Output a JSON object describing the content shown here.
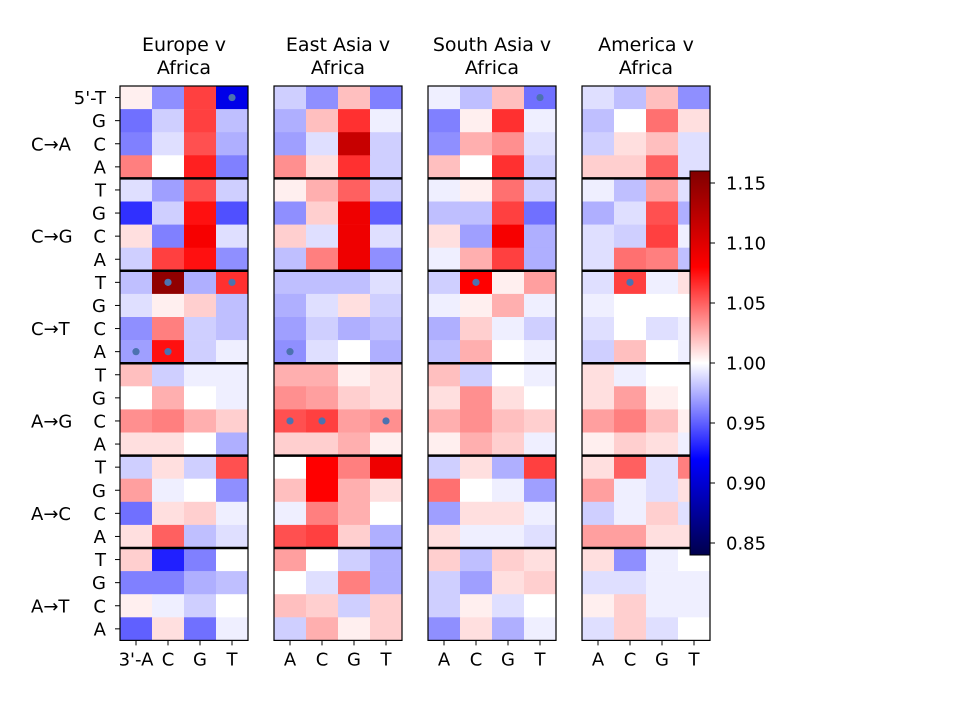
{
  "chart_data": {
    "type": "heatmap",
    "colormap": "seismic",
    "panels": [
      {
        "title_line1": "Europe v",
        "title_line2": "Africa",
        "x_tick_labels": [
          "3'-A",
          "C",
          "G",
          "T"
        ],
        "values": [
          [
            1.005,
            0.965,
            1.06,
            0.91
          ],
          [
            0.955,
            0.985,
            1.06,
            0.98
          ],
          [
            0.96,
            0.99,
            1.055,
            0.975
          ],
          [
            1.04,
            1.0,
            1.07,
            0.96
          ],
          [
            0.99,
            0.97,
            1.055,
            0.985
          ],
          [
            0.935,
            0.985,
            1.075,
            0.945
          ],
          [
            1.01,
            0.96,
            1.085,
            0.99
          ],
          [
            0.985,
            1.06,
            1.075,
            0.965
          ],
          [
            0.98,
            1.15,
            0.975,
            1.065
          ],
          [
            0.99,
            1.005,
            1.015,
            0.98
          ],
          [
            0.965,
            1.04,
            0.985,
            0.98
          ],
          [
            0.97,
            1.075,
            0.985,
            0.995
          ],
          [
            1.02,
            0.985,
            0.995,
            0.995
          ],
          [
            1.0,
            1.025,
            1.0,
            0.995
          ],
          [
            1.035,
            1.04,
            1.025,
            1.015
          ],
          [
            1.01,
            1.01,
            1.0,
            0.975
          ],
          [
            0.985,
            1.01,
            0.985,
            1.055
          ],
          [
            1.03,
            0.995,
            1.0,
            0.965
          ],
          [
            0.955,
            1.01,
            1.015,
            0.995
          ],
          [
            1.01,
            1.05,
            0.98,
            0.99
          ],
          [
            1.015,
            0.93,
            0.96,
            1.0
          ],
          [
            0.96,
            0.96,
            0.975,
            0.98
          ],
          [
            1.005,
            0.995,
            0.985,
            1.0
          ],
          [
            0.95,
            1.01,
            0.955,
            0.995
          ]
        ],
        "dots": [
          [
            0,
            3
          ],
          [
            8,
            1
          ],
          [
            8,
            3
          ],
          [
            11,
            0
          ],
          [
            11,
            1
          ]
        ]
      },
      {
        "title_line1": "East Asia v",
        "title_line2": "Africa",
        "x_tick_labels": [
          "A",
          "C",
          "G",
          "T"
        ],
        "values": [
          [
            0.985,
            0.965,
            1.02,
            0.96
          ],
          [
            0.975,
            1.02,
            1.065,
            0.995
          ],
          [
            0.97,
            0.99,
            1.115,
            0.985
          ],
          [
            1.035,
            1.01,
            1.065,
            0.985
          ],
          [
            1.005,
            1.025,
            1.05,
            0.985
          ],
          [
            0.965,
            1.015,
            1.09,
            0.95
          ],
          [
            1.015,
            0.99,
            1.09,
            0.99
          ],
          [
            0.98,
            1.04,
            1.09,
            0.965
          ],
          [
            0.98,
            0.98,
            0.98,
            0.99
          ],
          [
            0.975,
            0.99,
            1.01,
            0.985
          ],
          [
            0.97,
            0.985,
            0.975,
            0.98
          ],
          [
            0.965,
            0.99,
            1.0,
            0.975
          ],
          [
            1.025,
            1.025,
            1.005,
            1.01
          ],
          [
            1.035,
            1.03,
            1.015,
            1.01
          ],
          [
            1.055,
            1.06,
            1.03,
            1.035
          ],
          [
            1.015,
            1.015,
            1.025,
            1.005
          ],
          [
            1.0,
            1.08,
            1.04,
            1.09
          ],
          [
            1.02,
            1.08,
            1.025,
            1.01
          ],
          [
            0.995,
            1.04,
            1.025,
            1.0
          ],
          [
            1.055,
            1.06,
            1.015,
            0.975
          ],
          [
            1.03,
            1.0,
            0.985,
            0.975
          ],
          [
            1.0,
            0.99,
            1.04,
            0.975
          ],
          [
            1.02,
            1.015,
            0.985,
            1.015
          ],
          [
            0.985,
            1.025,
            1.005,
            1.015
          ]
        ],
        "dots": [
          [
            11,
            0
          ],
          [
            14,
            0
          ],
          [
            14,
            1
          ],
          [
            14,
            3
          ]
        ]
      },
      {
        "title_line1": "South Asia v",
        "title_line2": "Africa",
        "x_tick_labels": [
          "A",
          "C",
          "G",
          "T"
        ],
        "values": [
          [
            0.995,
            0.98,
            1.02,
            0.955
          ],
          [
            0.96,
            1.005,
            1.065,
            0.995
          ],
          [
            0.965,
            1.025,
            1.035,
            0.99
          ],
          [
            1.02,
            1.0,
            1.065,
            0.985
          ],
          [
            0.995,
            1.005,
            1.045,
            0.985
          ],
          [
            0.98,
            0.98,
            1.06,
            0.955
          ],
          [
            1.01,
            0.97,
            1.085,
            0.975
          ],
          [
            0.995,
            1.025,
            1.06,
            0.975
          ],
          [
            0.985,
            1.08,
            1.005,
            1.03
          ],
          [
            0.995,
            1.005,
            1.025,
            0.995
          ],
          [
            0.975,
            1.015,
            0.995,
            0.985
          ],
          [
            0.98,
            1.025,
            1.0,
            0.995
          ],
          [
            1.02,
            0.985,
            1.0,
            0.995
          ],
          [
            1.01,
            1.035,
            1.01,
            1.0
          ],
          [
            1.025,
            1.035,
            1.02,
            1.015
          ],
          [
            1.005,
            1.025,
            1.015,
            0.995
          ],
          [
            0.985,
            1.01,
            0.975,
            1.06
          ],
          [
            1.045,
            1.0,
            0.995,
            0.97
          ],
          [
            0.97,
            1.01,
            1.01,
            0.995
          ],
          [
            1.01,
            0.995,
            0.995,
            0.99
          ],
          [
            1.015,
            0.98,
            1.015,
            1.01
          ],
          [
            0.985,
            0.97,
            1.01,
            1.015
          ],
          [
            0.985,
            1.005,
            0.99,
            1.0
          ],
          [
            0.965,
            1.01,
            0.975,
            0.995
          ]
        ],
        "dots": [
          [
            0,
            3
          ],
          [
            8,
            1
          ]
        ]
      },
      {
        "title_line1": "America v",
        "title_line2": "Africa",
        "x_tick_labels": [
          "A",
          "C",
          "G",
          "T"
        ],
        "values": [
          [
            0.99,
            0.98,
            1.02,
            0.965
          ],
          [
            0.98,
            1.0,
            1.045,
            1.01
          ],
          [
            0.985,
            1.01,
            1.02,
            0.99
          ],
          [
            1.015,
            1.015,
            1.05,
            0.99
          ],
          [
            0.995,
            0.98,
            1.03,
            0.99
          ],
          [
            0.975,
            0.99,
            1.055,
            0.975
          ],
          [
            0.99,
            0.985,
            1.06,
            0.995
          ],
          [
            0.99,
            1.045,
            1.04,
            0.98
          ],
          [
            0.99,
            1.06,
            0.995,
            1.01
          ],
          [
            0.995,
            1.0,
            1.0,
            1.0
          ],
          [
            0.99,
            1.0,
            0.99,
            0.995
          ],
          [
            0.985,
            1.02,
            1.0,
            0.995
          ],
          [
            1.01,
            0.995,
            1.0,
            1.0
          ],
          [
            1.01,
            1.03,
            1.005,
            1.0
          ],
          [
            1.03,
            1.04,
            1.02,
            1.005
          ],
          [
            1.005,
            1.015,
            1.01,
            0.995
          ],
          [
            1.01,
            1.05,
            0.99,
            1.04
          ],
          [
            1.03,
            0.995,
            0.99,
            1.01
          ],
          [
            0.985,
            0.995,
            1.015,
            0.99
          ],
          [
            1.03,
            1.03,
            1.01,
            1.01
          ],
          [
            1.01,
            0.965,
            0.995,
            1.0
          ],
          [
            0.99,
            0.99,
            0.995,
            0.995
          ],
          [
            1.005,
            1.015,
            0.995,
            0.995
          ],
          [
            0.99,
            1.015,
            0.99,
            1.0
          ]
        ],
        "dots": [
          [
            8,
            1
          ]
        ]
      }
    ],
    "row_labels": [
      "5'-T",
      "G",
      "C",
      "A",
      "T",
      "G",
      "C",
      "A",
      "T",
      "G",
      "C",
      "A",
      "T",
      "G",
      "C",
      "A",
      "T",
      "G",
      "C",
      "A",
      "T",
      "G",
      "C",
      "A"
    ],
    "mutation_labels": [
      "C→A",
      "C→G",
      "C→T",
      "A→G",
      "A→C",
      "A→T"
    ],
    "colorbar": {
      "vmin": 0.84,
      "vmax": 1.16,
      "ticks": [
        "0.85",
        "0.90",
        "0.95",
        "1.00",
        "1.05",
        "1.10",
        "1.15"
      ]
    },
    "colors": {
      "dot": "#4c72b0",
      "divider": "#000000"
    }
  }
}
